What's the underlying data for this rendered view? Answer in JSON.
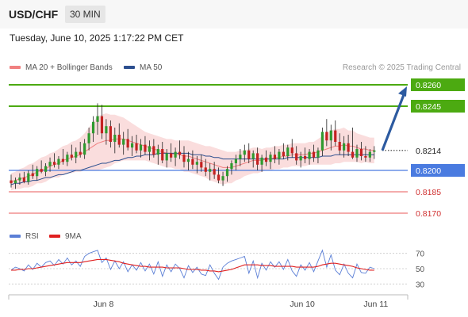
{
  "header": {
    "symbol": "USD/CHF",
    "timeframe": "30 MIN",
    "timestamp": "Tuesday, June 10, 2025 1:17:22 PM CET"
  },
  "legend": {
    "ma20_label": "MA 20 + Bollinger Bands",
    "ma50_label": "MA 50",
    "ma20_color": "#f08080",
    "ma50_color": "#2c4f8f",
    "credit": "Research © 2025 Trading Central"
  },
  "rsi_legend": {
    "rsi_label": "RSI",
    "ma_label": "9MA",
    "rsi_color": "#5b7fd6",
    "ma_color": "#e02020"
  },
  "chart_data": {
    "type": "candlestick",
    "price_levels": [
      {
        "label": "0.8260",
        "value": 0.826,
        "kind": "resistance",
        "color": "#4caa11"
      },
      {
        "label": "0.8245",
        "value": 0.8245,
        "kind": "resistance",
        "color": "#4caa11"
      },
      {
        "label": "0.8214",
        "value": 0.8214,
        "kind": "last_price",
        "color": "#222222"
      },
      {
        "label": "0.8200",
        "value": 0.82,
        "kind": "pivot",
        "color": "#4a7be0"
      },
      {
        "label": "0.8185",
        "value": 0.8185,
        "kind": "support",
        "color": "#e85a5a"
      },
      {
        "label": "0.8170",
        "value": 0.817,
        "kind": "support",
        "color": "#e85a5a"
      }
    ],
    "price_range": [
      0.8165,
      0.8265
    ],
    "candle_colors": {
      "up": "#2f9a2f",
      "down": "#c42121"
    },
    "candles": [
      [
        0.8193,
        0.8197,
        0.8188,
        0.8191
      ],
      [
        0.8191,
        0.8195,
        0.8187,
        0.8193
      ],
      [
        0.8193,
        0.8198,
        0.819,
        0.8195
      ],
      [
        0.8195,
        0.8199,
        0.8191,
        0.8192
      ],
      [
        0.8192,
        0.82,
        0.819,
        0.8198
      ],
      [
        0.8198,
        0.8204,
        0.8194,
        0.8196
      ],
      [
        0.8196,
        0.8203,
        0.8193,
        0.8201
      ],
      [
        0.8201,
        0.8207,
        0.8198,
        0.8199
      ],
      [
        0.8199,
        0.8205,
        0.8196,
        0.8203
      ],
      [
        0.8203,
        0.8209,
        0.8199,
        0.8206
      ],
      [
        0.8206,
        0.8212,
        0.8202,
        0.8204
      ],
      [
        0.8204,
        0.821,
        0.8201,
        0.8208
      ],
      [
        0.8208,
        0.8215,
        0.8204,
        0.8206
      ],
      [
        0.8206,
        0.8213,
        0.8203,
        0.8211
      ],
      [
        0.8211,
        0.8218,
        0.8207,
        0.8209
      ],
      [
        0.8209,
        0.8216,
        0.8205,
        0.8213
      ],
      [
        0.8213,
        0.822,
        0.8209,
        0.8211
      ],
      [
        0.8211,
        0.8222,
        0.8208,
        0.8219
      ],
      [
        0.8219,
        0.823,
        0.8214,
        0.8226
      ],
      [
        0.8226,
        0.8238,
        0.822,
        0.8234
      ],
      [
        0.8234,
        0.8247,
        0.8225,
        0.8238
      ],
      [
        0.8238,
        0.8246,
        0.8222,
        0.8226
      ],
      [
        0.8226,
        0.8236,
        0.8218,
        0.8231
      ],
      [
        0.8231,
        0.8235,
        0.8216,
        0.822
      ],
      [
        0.822,
        0.823,
        0.8212,
        0.8225
      ],
      [
        0.8225,
        0.8233,
        0.8216,
        0.8218
      ],
      [
        0.8218,
        0.8227,
        0.8211,
        0.8222
      ],
      [
        0.8222,
        0.8229,
        0.8214,
        0.8216
      ],
      [
        0.8216,
        0.8224,
        0.821,
        0.8219
      ],
      [
        0.8219,
        0.8225,
        0.8212,
        0.8214
      ],
      [
        0.8214,
        0.8222,
        0.8209,
        0.8218
      ],
      [
        0.8218,
        0.8224,
        0.8211,
        0.8213
      ],
      [
        0.8213,
        0.8221,
        0.8207,
        0.8217
      ],
      [
        0.8217,
        0.8222,
        0.8209,
        0.8211
      ],
      [
        0.8211,
        0.8218,
        0.8204,
        0.8215
      ],
      [
        0.8215,
        0.822,
        0.8205,
        0.8207
      ],
      [
        0.8207,
        0.8215,
        0.8202,
        0.8212
      ],
      [
        0.8212,
        0.8219,
        0.8206,
        0.8209
      ],
      [
        0.8209,
        0.8216,
        0.8203,
        0.8213
      ],
      [
        0.8213,
        0.8221,
        0.8208,
        0.8211
      ],
      [
        0.8211,
        0.8217,
        0.8202,
        0.8206
      ],
      [
        0.8206,
        0.8213,
        0.82,
        0.8208
      ],
      [
        0.8208,
        0.8214,
        0.8201,
        0.8204
      ],
      [
        0.8204,
        0.821,
        0.8198,
        0.8206
      ],
      [
        0.8206,
        0.8211,
        0.8199,
        0.8202
      ],
      [
        0.8202,
        0.8208,
        0.8196,
        0.8199
      ],
      [
        0.8199,
        0.8205,
        0.8193,
        0.8201
      ],
      [
        0.8201,
        0.8206,
        0.8194,
        0.8197
      ],
      [
        0.8197,
        0.8202,
        0.8191,
        0.8193
      ],
      [
        0.8193,
        0.8199,
        0.8189,
        0.8196
      ],
      [
        0.8196,
        0.8203,
        0.8192,
        0.8201
      ],
      [
        0.8201,
        0.8207,
        0.8197,
        0.8205
      ],
      [
        0.8205,
        0.8211,
        0.82,
        0.8208
      ],
      [
        0.8208,
        0.8215,
        0.8203,
        0.8211
      ],
      [
        0.8211,
        0.8218,
        0.8206,
        0.8214
      ],
      [
        0.8214,
        0.8219,
        0.8205,
        0.8208
      ],
      [
        0.8208,
        0.8214,
        0.8202,
        0.8212
      ],
      [
        0.8212,
        0.8216,
        0.82,
        0.8204
      ],
      [
        0.8204,
        0.8211,
        0.8199,
        0.8209
      ],
      [
        0.8209,
        0.8214,
        0.8203,
        0.8206
      ],
      [
        0.8206,
        0.8213,
        0.8201,
        0.8211
      ],
      [
        0.8211,
        0.8217,
        0.8205,
        0.8208
      ],
      [
        0.8208,
        0.8215,
        0.8204,
        0.8213
      ],
      [
        0.8213,
        0.8219,
        0.8208,
        0.821
      ],
      [
        0.821,
        0.8218,
        0.8207,
        0.8216
      ],
      [
        0.8216,
        0.8222,
        0.8209,
        0.8212
      ],
      [
        0.8212,
        0.8217,
        0.8204,
        0.8207
      ],
      [
        0.8207,
        0.8213,
        0.8202,
        0.821
      ],
      [
        0.821,
        0.8216,
        0.8205,
        0.8208
      ],
      [
        0.8208,
        0.8215,
        0.8204,
        0.8213
      ],
      [
        0.8213,
        0.8218,
        0.8206,
        0.8209
      ],
      [
        0.8209,
        0.8216,
        0.8205,
        0.8214
      ],
      [
        0.8214,
        0.823,
        0.821,
        0.8227
      ],
      [
        0.8227,
        0.8236,
        0.8217,
        0.8221
      ],
      [
        0.8221,
        0.8232,
        0.8214,
        0.8228
      ],
      [
        0.8228,
        0.8235,
        0.8217,
        0.822
      ],
      [
        0.822,
        0.8226,
        0.8211,
        0.8214
      ],
      [
        0.8214,
        0.8224,
        0.8209,
        0.8219
      ],
      [
        0.8219,
        0.8225,
        0.821,
        0.8213
      ],
      [
        0.8213,
        0.823,
        0.8208,
        0.8209
      ],
      [
        0.8209,
        0.8218,
        0.8206,
        0.8215
      ],
      [
        0.8215,
        0.822,
        0.8207,
        0.821
      ],
      [
        0.821,
        0.8217,
        0.8206,
        0.8209
      ],
      [
        0.8209,
        0.8215,
        0.8206,
        0.8213
      ],
      [
        0.8213,
        0.8217,
        0.8208,
        0.8214
      ]
    ],
    "ma20": [
      0.8192,
      0.8193,
      0.8194,
      0.8195,
      0.8196,
      0.8197,
      0.8199,
      0.82,
      0.8201,
      0.8203,
      0.8204,
      0.8205,
      0.8207,
      0.8208,
      0.8209,
      0.821,
      0.8211,
      0.8213,
      0.8215,
      0.8217,
      0.8219,
      0.822,
      0.8221,
      0.8221,
      0.8222,
      0.8222,
      0.8222,
      0.8221,
      0.822,
      0.8219,
      0.8218,
      0.8217,
      0.8216,
      0.8215,
      0.8214,
      0.8213,
      0.8212,
      0.8212,
      0.8211,
      0.8211,
      0.821,
      0.821,
      0.8209,
      0.8208,
      0.8207,
      0.8206,
      0.8205,
      0.8204,
      0.8203,
      0.8202,
      0.8202,
      0.8202,
      0.8203,
      0.8204,
      0.8205,
      0.8206,
      0.8207,
      0.8207,
      0.8207,
      0.8208,
      0.8208,
      0.8209,
      0.8209,
      0.821,
      0.821,
      0.8211,
      0.8211,
      0.8211,
      0.8211,
      0.8212,
      0.8212,
      0.8213,
      0.8214,
      0.8215,
      0.8216,
      0.8217,
      0.8217,
      0.8218,
      0.8217,
      0.8217,
      0.8216,
      0.8215,
      0.8215,
      0.8214,
      0.8214
    ],
    "bb_width": [
      0.0006,
      0.0006,
      0.0007,
      0.0007,
      0.0008,
      0.0008,
      0.0008,
      0.0009,
      0.0009,
      0.0009,
      0.0009,
      0.001,
      0.001,
      0.001,
      0.0011,
      0.0011,
      0.0012,
      0.0013,
      0.0015,
      0.0017,
      0.0019,
      0.0019,
      0.0019,
      0.0018,
      0.0017,
      0.0016,
      0.0015,
      0.0014,
      0.0013,
      0.0012,
      0.0011,
      0.001,
      0.001,
      0.001,
      0.001,
      0.001,
      0.001,
      0.001,
      0.001,
      0.001,
      0.0011,
      0.0011,
      0.0011,
      0.0011,
      0.0011,
      0.0011,
      0.0012,
      0.0012,
      0.0012,
      0.0012,
      0.0011,
      0.0011,
      0.001,
      0.001,
      0.0009,
      0.0009,
      0.0009,
      0.0009,
      0.0008,
      0.0008,
      0.0008,
      0.0008,
      0.0008,
      0.0008,
      0.0008,
      0.0008,
      0.0008,
      0.0008,
      0.0008,
      0.0008,
      0.0008,
      0.0009,
      0.001,
      0.0011,
      0.0012,
      0.0012,
      0.0012,
      0.0012,
      0.0011,
      0.0011,
      0.001,
      0.001,
      0.0009,
      0.0009,
      0.0009
    ],
    "ma50": [
      0.819,
      0.8191,
      0.8191,
      0.8192,
      0.8192,
      0.8193,
      0.8193,
      0.8194,
      0.8195,
      0.8195,
      0.8196,
      0.8197,
      0.8197,
      0.8198,
      0.8199,
      0.82,
      0.82,
      0.8201,
      0.8202,
      0.8203,
      0.8204,
      0.8205,
      0.8205,
      0.8206,
      0.8207,
      0.8207,
      0.8208,
      0.8209,
      0.8209,
      0.821,
      0.821,
      0.8211,
      0.8211,
      0.8211,
      0.8212,
      0.8212,
      0.8212,
      0.8212,
      0.8212,
      0.8212,
      0.8212,
      0.8212,
      0.8211,
      0.8211,
      0.8211,
      0.821,
      0.821,
      0.8209,
      0.8209,
      0.8208,
      0.8208,
      0.8208,
      0.8208,
      0.8208,
      0.8208,
      0.8208,
      0.8208,
      0.8208,
      0.8208,
      0.8208,
      0.8208,
      0.8208,
      0.8208,
      0.8208,
      0.8209,
      0.8209,
      0.8209,
      0.8209,
      0.8209,
      0.8209,
      0.8209,
      0.8209,
      0.821,
      0.821,
      0.821,
      0.8211,
      0.8211,
      0.8211,
      0.8211,
      0.8211,
      0.8211,
      0.8211,
      0.8211,
      0.8211,
      0.8211
    ],
    "projection": {
      "from": 0.8214,
      "to": 0.826
    },
    "rsi": {
      "levels": [
        70,
        50,
        30
      ],
      "range": [
        20,
        80
      ],
      "rsi": [
        48,
        52,
        50,
        47,
        55,
        49,
        57,
        52,
        58,
        60,
        54,
        62,
        56,
        64,
        55,
        60,
        53,
        66,
        70,
        72,
        74,
        58,
        64,
        49,
        60,
        50,
        59,
        46,
        55,
        48,
        58,
        47,
        56,
        43,
        59,
        40,
        55,
        46,
        56,
        50,
        38,
        54,
        45,
        52,
        43,
        41,
        55,
        44,
        36,
        52,
        57,
        60,
        62,
        64,
        66,
        44,
        60,
        38,
        57,
        48,
        59,
        52,
        59,
        49,
        62,
        47,
        40,
        55,
        48,
        58,
        46,
        60,
        74,
        52,
        68,
        48,
        42,
        56,
        44,
        38,
        56,
        45,
        44,
        52,
        50
      ],
      "ma": [
        48,
        48,
        49,
        49,
        50,
        50,
        51,
        52,
        53,
        54,
        55,
        56,
        57,
        58,
        58,
        58,
        58,
        59,
        60,
        61,
        62,
        62,
        62,
        61,
        60,
        59,
        57,
        56,
        55,
        54,
        53,
        53,
        52,
        52,
        52,
        52,
        51,
        51,
        51,
        51,
        50,
        49,
        49,
        49,
        48,
        48,
        47,
        47,
        46,
        47,
        48,
        49,
        51,
        53,
        55,
        55,
        55,
        55,
        54,
        54,
        54,
        53,
        53,
        53,
        53,
        53,
        52,
        52,
        52,
        52,
        52,
        53,
        55,
        56,
        57,
        57,
        56,
        55,
        54,
        53,
        51,
        50,
        49,
        48,
        48
      ]
    },
    "x_labels": [
      "Jun 8",
      "Jun 10",
      "Jun 11"
    ],
    "x_label_index": [
      21,
      67,
      84
    ]
  }
}
